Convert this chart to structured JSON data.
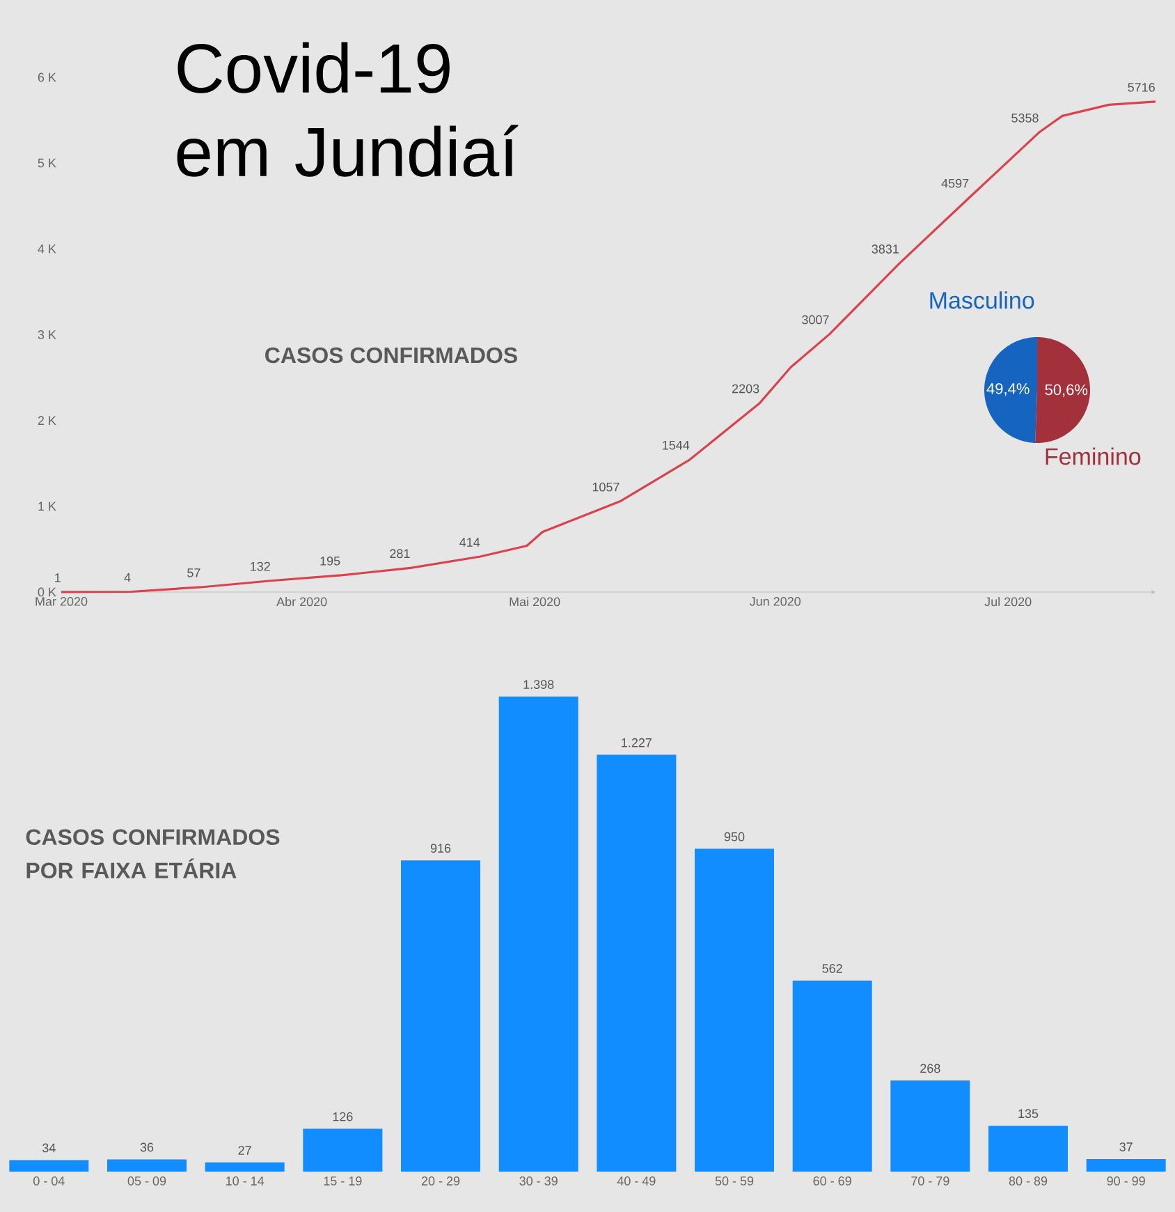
{
  "chart_data": [
    {
      "type": "line",
      "title": "Covid-19 em Jundiaí",
      "subtitle": "CASOS CONFIRMADOS",
      "x": [
        "2020-03-01",
        "2020-03-10",
        "2020-03-19",
        "2020-03-28",
        "2020-04-06",
        "2020-04-15",
        "2020-04-24",
        "2020-04-30",
        "2020-05-02",
        "2020-05-12",
        "2020-05-21",
        "2020-05-30",
        "2020-06-03",
        "2020-06-08",
        "2020-06-17",
        "2020-06-26",
        "2020-07-05",
        "2020-07-08",
        "2020-07-14",
        "2020-07-20"
      ],
      "series": [
        {
          "color": "#d9434e",
          "values": [
            1,
            4,
            57,
            132,
            195,
            281,
            414,
            540,
            700,
            1057,
            1544,
            2203,
            2620,
            3007,
            3831,
            4597,
            5358,
            5550,
            5680,
            5716
          ],
          "value_labels": [
            "1",
            "4",
            "57",
            "132",
            "195",
            "281",
            "414",
            null,
            null,
            "1057",
            "1544",
            "2203",
            null,
            "3007",
            "3831",
            "4597",
            "5358",
            null,
            null,
            "5716"
          ]
        }
      ],
      "xticks": [
        {
          "value": "2020-03-01",
          "label": "Mar 2020"
        },
        {
          "value": "2020-04-01",
          "label": "Abr 2020"
        },
        {
          "value": "2020-05-01",
          "label": "Mai 2020"
        },
        {
          "value": "2020-06-01",
          "label": "Jun 2020"
        },
        {
          "value": "2020-07-01",
          "label": "Jul 2020"
        }
      ],
      "xlim": [
        "2020-03-01",
        "2020-07-20"
      ],
      "ylim": [
        0,
        6000
      ],
      "yticks": [
        {
          "value": 0,
          "label": "0 K"
        },
        {
          "value": 1000,
          "label": "1 K"
        },
        {
          "value": 2000,
          "label": "2 K"
        },
        {
          "value": 3000,
          "label": "3 K"
        },
        {
          "value": 4000,
          "label": "4 K"
        },
        {
          "value": 5000,
          "label": "5 K"
        },
        {
          "value": 6000,
          "label": "6 K"
        }
      ]
    },
    {
      "type": "pie",
      "categories": [
        "Masculino",
        "Feminino"
      ],
      "values": [
        49.4,
        50.6
      ],
      "colors": [
        "#1565c0",
        "#a2313b"
      ],
      "value_labels": [
        "49,4%",
        "50,6%"
      ]
    },
    {
      "type": "bar",
      "title": "CASOS CONFIRMADOS POR FAIXA ETÁRIA",
      "categories": [
        "0 - 04",
        "05 - 09",
        "10 - 14",
        "15 - 19",
        "20 - 29",
        "30 - 39",
        "40 - 49",
        "50 - 59",
        "60 - 69",
        "70 - 79",
        "80 - 89",
        "90 - 99"
      ],
      "values": [
        34,
        36,
        27,
        126,
        916,
        1398,
        1227,
        950,
        562,
        268,
        135,
        37
      ],
      "color": "#118dff",
      "value_labels": [
        "34",
        "36",
        "27",
        "126",
        "916",
        "1.398",
        "1.227",
        "950",
        "562",
        "268",
        "135",
        "37"
      ]
    }
  ]
}
